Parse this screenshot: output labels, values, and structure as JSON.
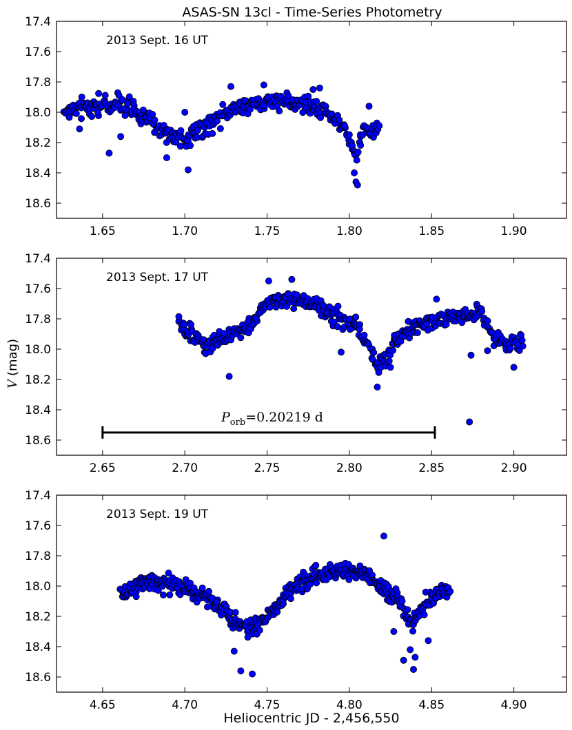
{
  "title": "ASAS-SN 13cl - Time-Series Photometry",
  "xlabel": "Heliocentric JD - 2,456,550",
  "ylabel_symbol": "V",
  "ylabel_unit": "(mag)",
  "chart_data": [
    {
      "type": "scatter",
      "annotation": "2013 Sept. 16 UT",
      "xlim": [
        1.622,
        1.932
      ],
      "ylim": [
        18.7,
        17.4
      ],
      "yticks": [
        17.4,
        17.6,
        17.8,
        18.0,
        18.2,
        18.4,
        18.6
      ],
      "ytick_labels": [
        "17.4",
        "17.6",
        "17.8",
        "18.0",
        "18.2",
        "18.4",
        "18.6"
      ],
      "xticks": [
        1.65,
        1.7,
        1.75,
        1.8,
        1.85,
        1.9
      ],
      "xtick_labels": [
        "1.65",
        "1.70",
        "1.75",
        "1.80",
        "1.85",
        "1.90"
      ],
      "marker_color": "#0000ff",
      "outliers": [
        [
          1.654,
          18.27
        ],
        [
          1.661,
          18.16
        ],
        [
          1.702,
          18.38
        ],
        [
          1.7,
          18.0
        ],
        [
          1.636,
          18.11
        ],
        [
          1.728,
          17.83
        ],
        [
          1.748,
          17.82
        ],
        [
          1.804,
          18.46
        ],
        [
          1.805,
          18.48
        ],
        [
          1.803,
          18.4
        ],
        [
          1.778,
          17.85
        ],
        [
          1.782,
          17.84
        ],
        [
          1.689,
          18.3
        ],
        [
          1.812,
          17.96
        ]
      ],
      "n_points": 380,
      "curve_x": [
        1.627,
        1.64,
        1.66,
        1.675,
        1.69,
        1.7,
        1.715,
        1.725,
        1.74,
        1.755,
        1.77,
        1.785,
        1.795,
        1.8,
        1.804,
        1.808,
        1.818
      ],
      "curve_y": [
        17.99,
        17.96,
        17.94,
        18.02,
        18.15,
        18.18,
        18.09,
        18.0,
        17.94,
        17.92,
        17.95,
        17.99,
        18.06,
        18.16,
        18.3,
        18.12,
        18.1
      ]
    },
    {
      "type": "scatter",
      "annotation": "2013 Sept. 17 UT",
      "xlim": [
        2.622,
        2.932
      ],
      "ylim": [
        18.7,
        17.4
      ],
      "yticks": [
        17.4,
        17.6,
        17.8,
        18.0,
        18.2,
        18.4,
        18.6
      ],
      "ytick_labels": [
        "17.4",
        "17.6",
        "17.8",
        "18.0",
        "18.2",
        "18.4",
        "18.6"
      ],
      "xticks": [
        2.65,
        2.7,
        2.75,
        2.8,
        2.85,
        2.9
      ],
      "xtick_labels": [
        "2.65",
        "2.70",
        "2.75",
        "2.80",
        "2.85",
        "2.90"
      ],
      "marker_color": "#0000ff",
      "outliers": [
        [
          2.873,
          18.48
        ],
        [
          2.727,
          18.18
        ],
        [
          2.795,
          18.02
        ],
        [
          2.9,
          18.12
        ],
        [
          2.874,
          18.04
        ],
        [
          2.884,
          18.01
        ],
        [
          2.765,
          17.54
        ],
        [
          2.751,
          17.55
        ],
        [
          2.817,
          18.25
        ],
        [
          2.825,
          18.12
        ],
        [
          2.853,
          17.67
        ]
      ],
      "n_points": 450,
      "curve_x": [
        2.696,
        2.705,
        2.712,
        2.72,
        2.73,
        2.74,
        2.75,
        2.765,
        2.78,
        2.795,
        2.805,
        2.812,
        2.818,
        2.828,
        2.84,
        2.86,
        2.88,
        2.885,
        2.892,
        2.898,
        2.905
      ],
      "curve_y": [
        17.82,
        17.92,
        17.98,
        17.96,
        17.9,
        17.82,
        17.7,
        17.66,
        17.72,
        17.8,
        17.86,
        17.98,
        18.14,
        17.94,
        17.84,
        17.8,
        17.76,
        17.86,
        17.96,
        17.98,
        17.96
      ],
      "period_bar": {
        "x1": 2.65,
        "x2": 2.852,
        "y": 18.55,
        "label": "P",
        "label_sub": "orb",
        "label_rest": "=0.20219 d"
      }
    },
    {
      "type": "scatter",
      "annotation": "2013 Sept. 19 UT",
      "xlim": [
        4.622,
        4.932
      ],
      "ylim": [
        18.7,
        17.4
      ],
      "yticks": [
        17.4,
        17.6,
        17.8,
        18.0,
        18.2,
        18.4,
        18.6
      ],
      "ytick_labels": [
        "17.4",
        "17.6",
        "17.8",
        "18.0",
        "18.2",
        "18.4",
        "18.6"
      ],
      "xticks": [
        4.65,
        4.7,
        4.75,
        4.8,
        4.85,
        4.9
      ],
      "xtick_labels": [
        "4.65",
        "4.70",
        "4.75",
        "4.80",
        "4.85",
        "4.90"
      ],
      "marker_color": "#0000ff",
      "outliers": [
        [
          4.734,
          18.56
        ],
        [
          4.741,
          18.58
        ],
        [
          4.839,
          18.55
        ],
        [
          4.833,
          18.49
        ],
        [
          4.821,
          17.67
        ],
        [
          4.84,
          18.47
        ],
        [
          4.837,
          18.42
        ],
        [
          4.848,
          18.36
        ],
        [
          4.73,
          18.43
        ],
        [
          4.827,
          18.3
        ]
      ],
      "n_points": 520,
      "curve_x": [
        4.661,
        4.675,
        4.69,
        4.705,
        4.72,
        4.73,
        4.74,
        4.75,
        4.765,
        4.78,
        4.795,
        4.81,
        4.82,
        4.83,
        4.838,
        4.846,
        4.855,
        4.861
      ],
      "curve_y": [
        18.05,
        17.97,
        17.97,
        18.04,
        18.12,
        18.24,
        18.27,
        18.19,
        18.03,
        17.92,
        17.9,
        17.92,
        18.02,
        18.1,
        18.25,
        18.12,
        18.04,
        18.04
      ]
    }
  ]
}
